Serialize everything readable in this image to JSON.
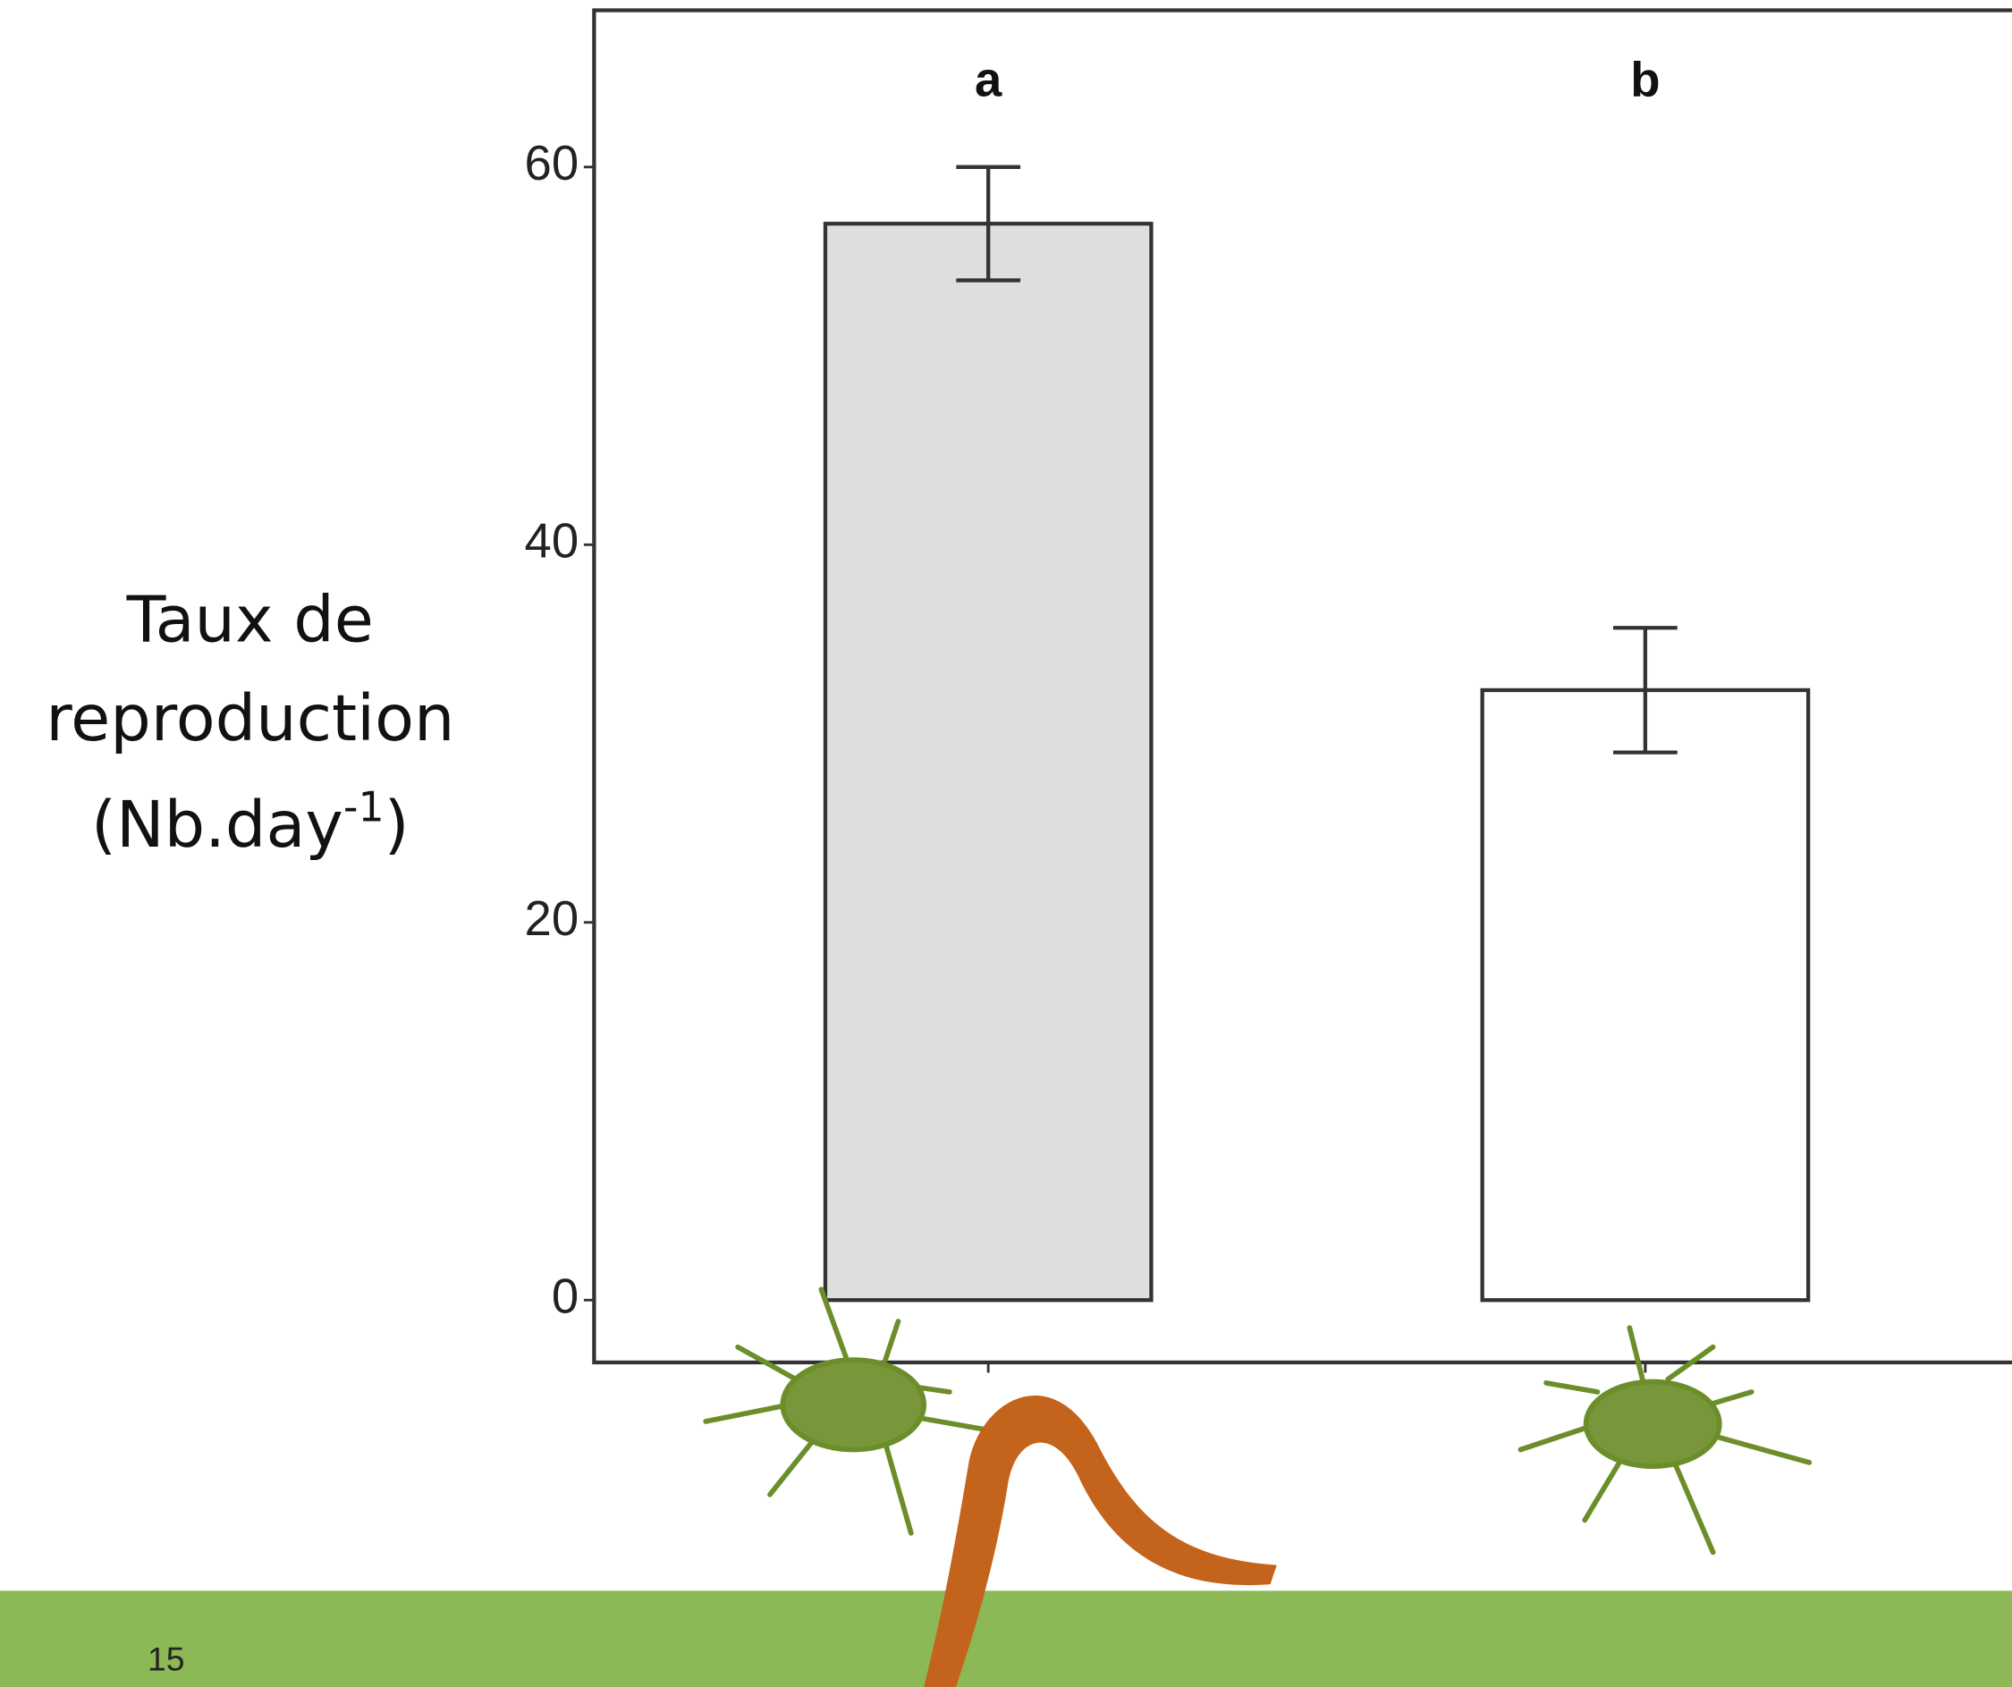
{
  "chart_data": {
    "type": "bar",
    "y_label": [
      "Taux de",
      "reproduction",
      "(Nb.day",
      "-1",
      ")"
    ],
    "categories": [
      null,
      null
    ],
    "values": [
      57,
      32.3
    ],
    "errors": [
      3,
      3.3
    ],
    "annotations": [
      "a",
      "b"
    ],
    "colors": [
      "#dedede",
      "#ffffff"
    ],
    "ylim": [
      -3.3,
      68.3
    ],
    "yticks": [
      0,
      20,
      40,
      60
    ]
  },
  "footer": {
    "page_number": "15"
  }
}
